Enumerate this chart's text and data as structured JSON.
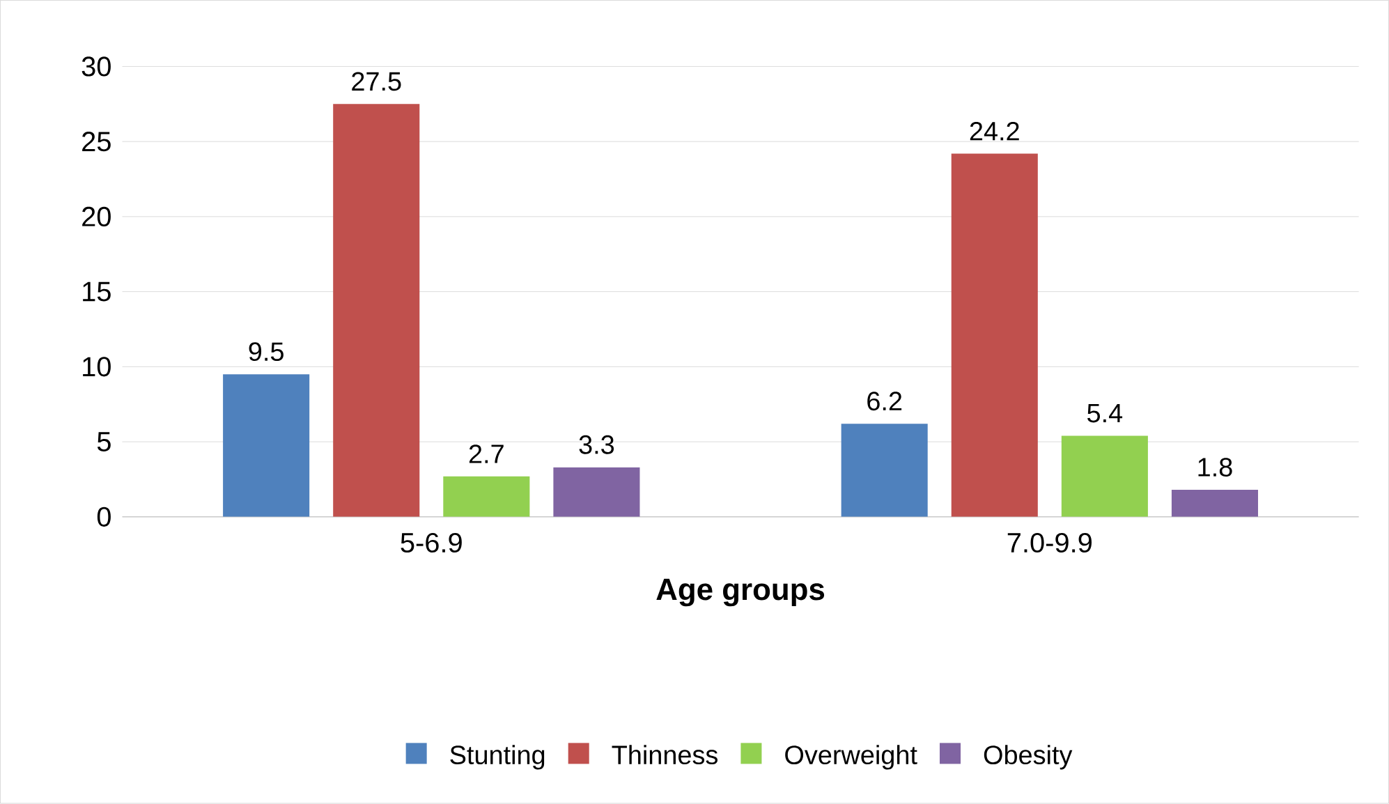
{
  "chart_data": {
    "type": "bar",
    "xlabel": "Age groups",
    "categories": [
      "5-6.9",
      "7.0-9.9"
    ],
    "series": [
      {
        "name": "Stunting",
        "color": "#4f81bd",
        "values": [
          9.5,
          6.2
        ]
      },
      {
        "name": "Thinness",
        "color": "#c0504d",
        "values": [
          27.5,
          24.2
        ]
      },
      {
        "name": "Overweight",
        "color": "#92d050",
        "values": [
          2.7,
          5.4
        ]
      },
      {
        "name": "Obesity",
        "color": "#8064a2",
        "values": [
          3.3,
          1.8
        ]
      }
    ],
    "ylim": [
      0,
      30
    ],
    "yticks": [
      0,
      5,
      10,
      15,
      20,
      25,
      30
    ],
    "grid": "y",
    "legend": "bottom",
    "data_labels": true
  }
}
